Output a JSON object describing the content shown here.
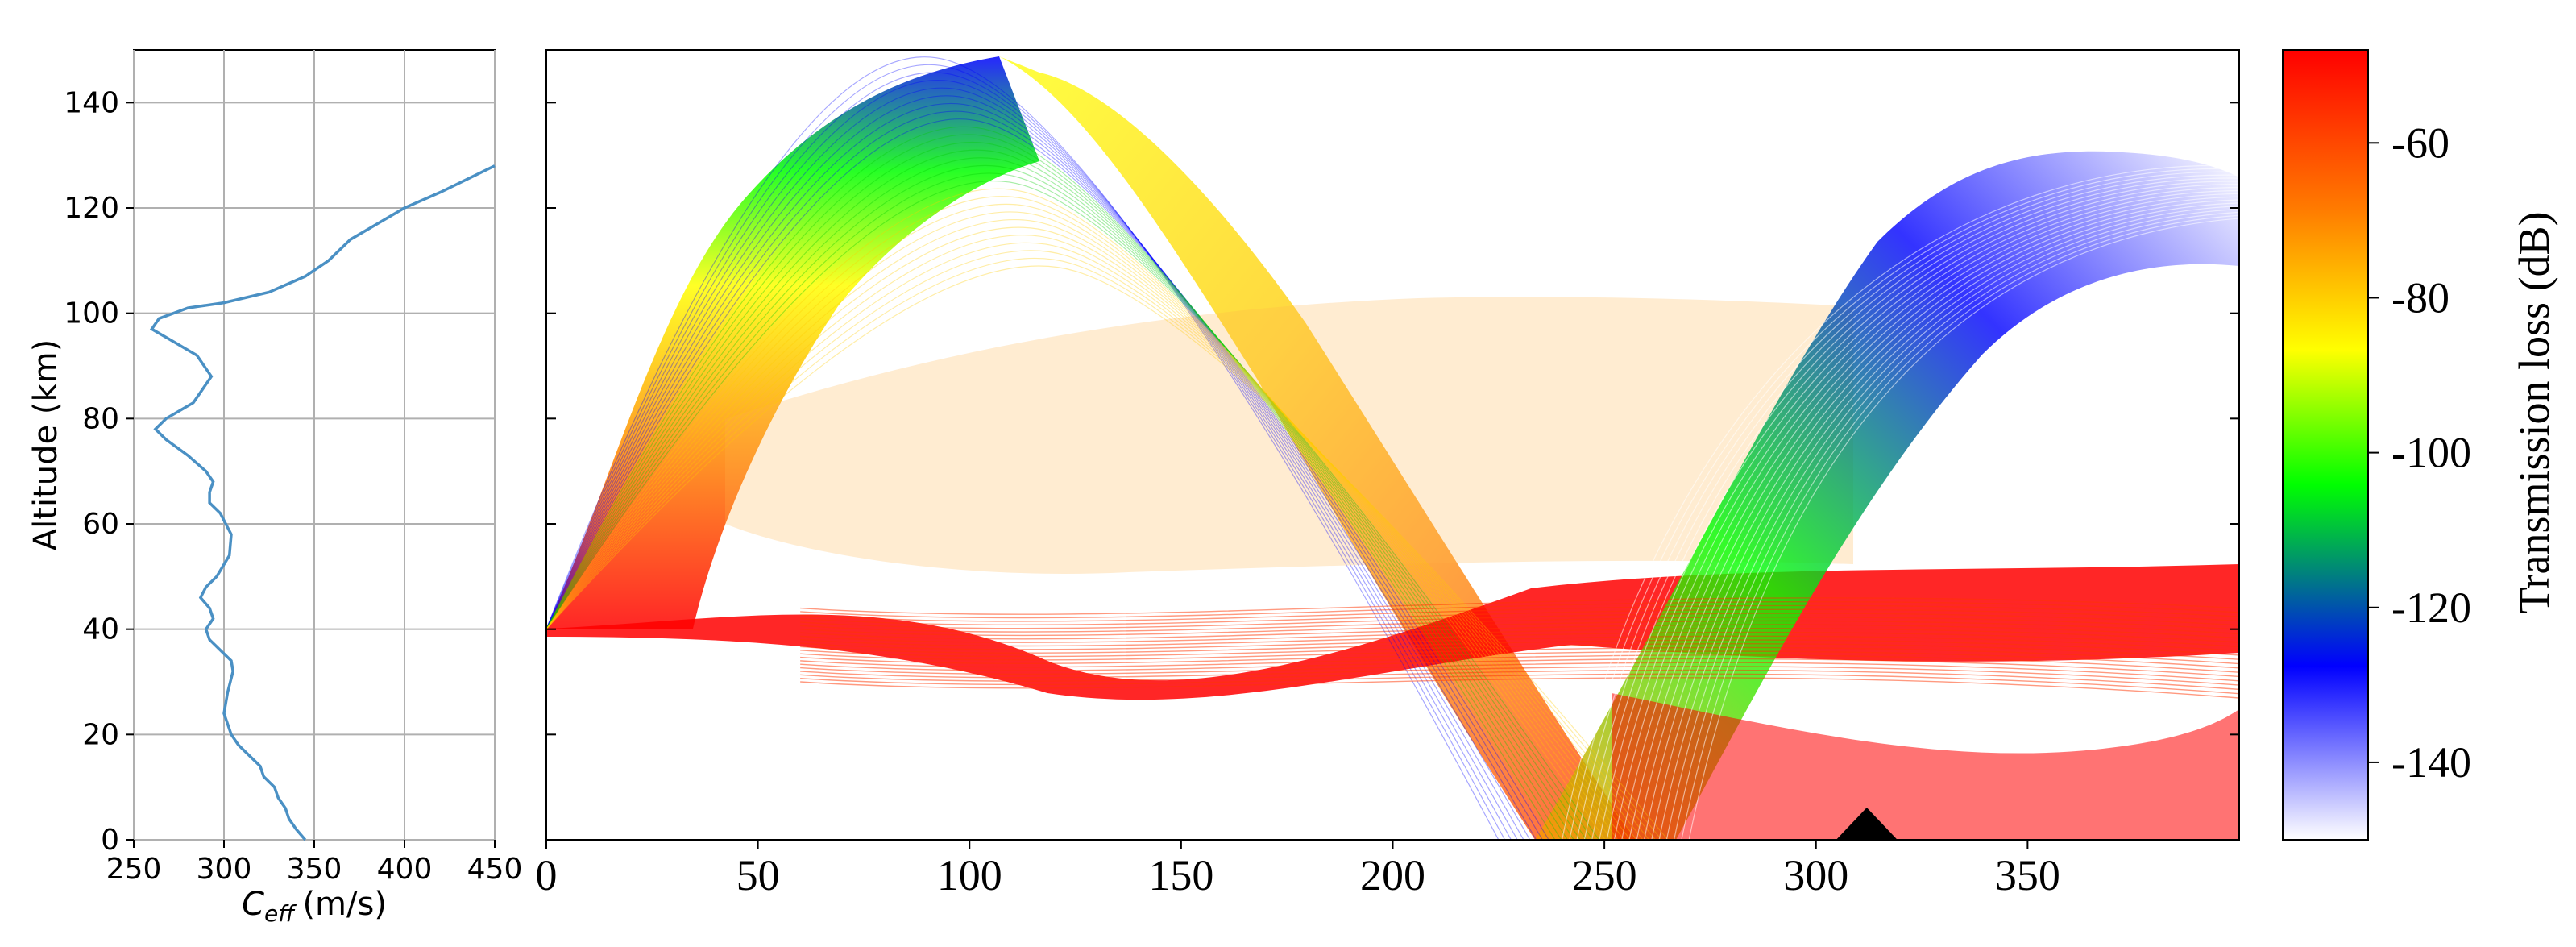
{
  "chart_data": [
    {
      "type": "line",
      "xlabel_main": "C",
      "xlabel_sub": "eff",
      "xlabel_unit": "(m/s)",
      "ylabel": "Altitude (km)",
      "xlim": [
        250,
        450
      ],
      "ylim": [
        0,
        150
      ],
      "xticks": [
        "250",
        "300",
        "350",
        "400",
        "450"
      ],
      "yticks": [
        "0",
        "20",
        "40",
        "60",
        "80",
        "100",
        "120",
        "140"
      ],
      "grid": true,
      "line_color": "#4a90c4",
      "series": [
        {
          "x": [
            345,
            340,
            336,
            334,
            330,
            328,
            322,
            320,
            314,
            308,
            304,
            300,
            302,
            305,
            304,
            298,
            292,
            290,
            294,
            292,
            287,
            290,
            296,
            303,
            304,
            301,
            298,
            292,
            292,
            294,
            290,
            280,
            268,
            262,
            268,
            283,
            293,
            285,
            270,
            260,
            264,
            280,
            300,
            325,
            345,
            358,
            370,
            385,
            400,
            420,
            450
          ],
          "y": [
            0,
            2,
            4,
            6,
            8,
            10,
            12,
            14,
            16,
            18,
            20,
            24,
            28,
            32,
            34,
            36,
            38,
            40,
            42,
            44,
            46,
            48,
            50,
            54,
            58,
            60,
            62,
            64,
            66,
            68,
            70,
            73,
            76,
            78,
            80,
            83,
            88,
            92,
            95,
            97,
            99,
            101,
            102,
            104,
            107,
            110,
            114,
            117,
            120,
            123,
            128
          ]
        }
      ]
    },
    {
      "type": "heatmap",
      "xlim": [
        0,
        400
      ],
      "ylim": [
        0,
        150
      ],
      "xticks": [
        "0",
        "50",
        "100",
        "150",
        "200",
        "250",
        "300",
        "350"
      ],
      "grid": false,
      "source_position_km": [
        0,
        40
      ],
      "receiver_position_km": 312
    },
    {
      "type": "colorbar",
      "label": "Transmission loss (dB)",
      "range": [
        -150,
        -48
      ],
      "ticks": [
        "-60",
        "-80",
        "-100",
        "-120",
        "-140"
      ],
      "colors": [
        "#ff0000",
        "#ff8000",
        "#ffff00",
        "#00ff00",
        "#0000ff",
        "#ffffff"
      ]
    }
  ]
}
